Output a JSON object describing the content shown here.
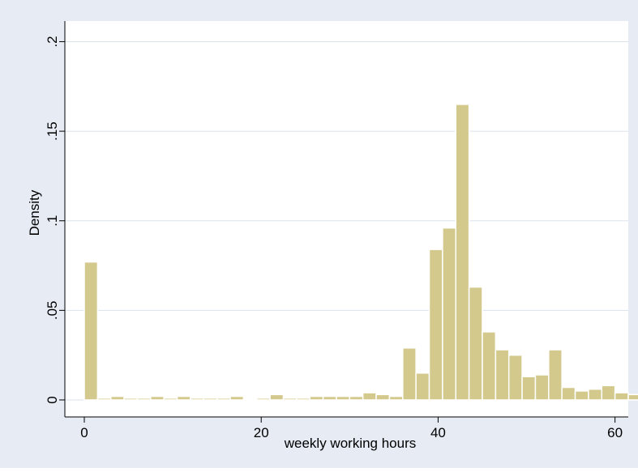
{
  "chart_data": {
    "type": "bar",
    "title": "",
    "xlabel": "weekly working hours",
    "ylabel": "Density",
    "xlim": [
      -2.2,
      61.5
    ],
    "ylim": [
      -0.0095,
      0.2115
    ],
    "xticks": [
      0,
      20,
      40,
      60
    ],
    "xtick_labels": [
      "0",
      "20",
      "40",
      "60"
    ],
    "yticks": [
      0,
      0.05,
      0.1,
      0.15,
      0.2
    ],
    "ytick_labels": [
      "0",
      ".05",
      ".1",
      ".15",
      ".2"
    ],
    "grid": "horizontal",
    "legend": "none",
    "bin_width": 1.5,
    "bins_start": 0,
    "values": [
      0.077,
      0.001,
      0.002,
      0.001,
      0.001,
      0.002,
      0.001,
      0.002,
      0.001,
      0.001,
      0.001,
      0.002,
      0.0005,
      0.001,
      0.003,
      0.001,
      0.001,
      0.002,
      0.002,
      0.002,
      0.002,
      0.004,
      0.003,
      0.002,
      0.029,
      0.015,
      0.084,
      0.096,
      0.165,
      0.063,
      0.038,
      0.028,
      0.025,
      0.013,
      0.014,
      0.028,
      0.007,
      0.005,
      0.006,
      0.008,
      0.004,
      0.003,
      0.003
    ],
    "colors": {
      "background": "#e6ebf4",
      "plot_area": "#ffffff",
      "bar_fill": "#d4c98c",
      "bar_stroke": "#ffffff",
      "grid": "#dbe2ee",
      "axis": "#000000"
    }
  }
}
